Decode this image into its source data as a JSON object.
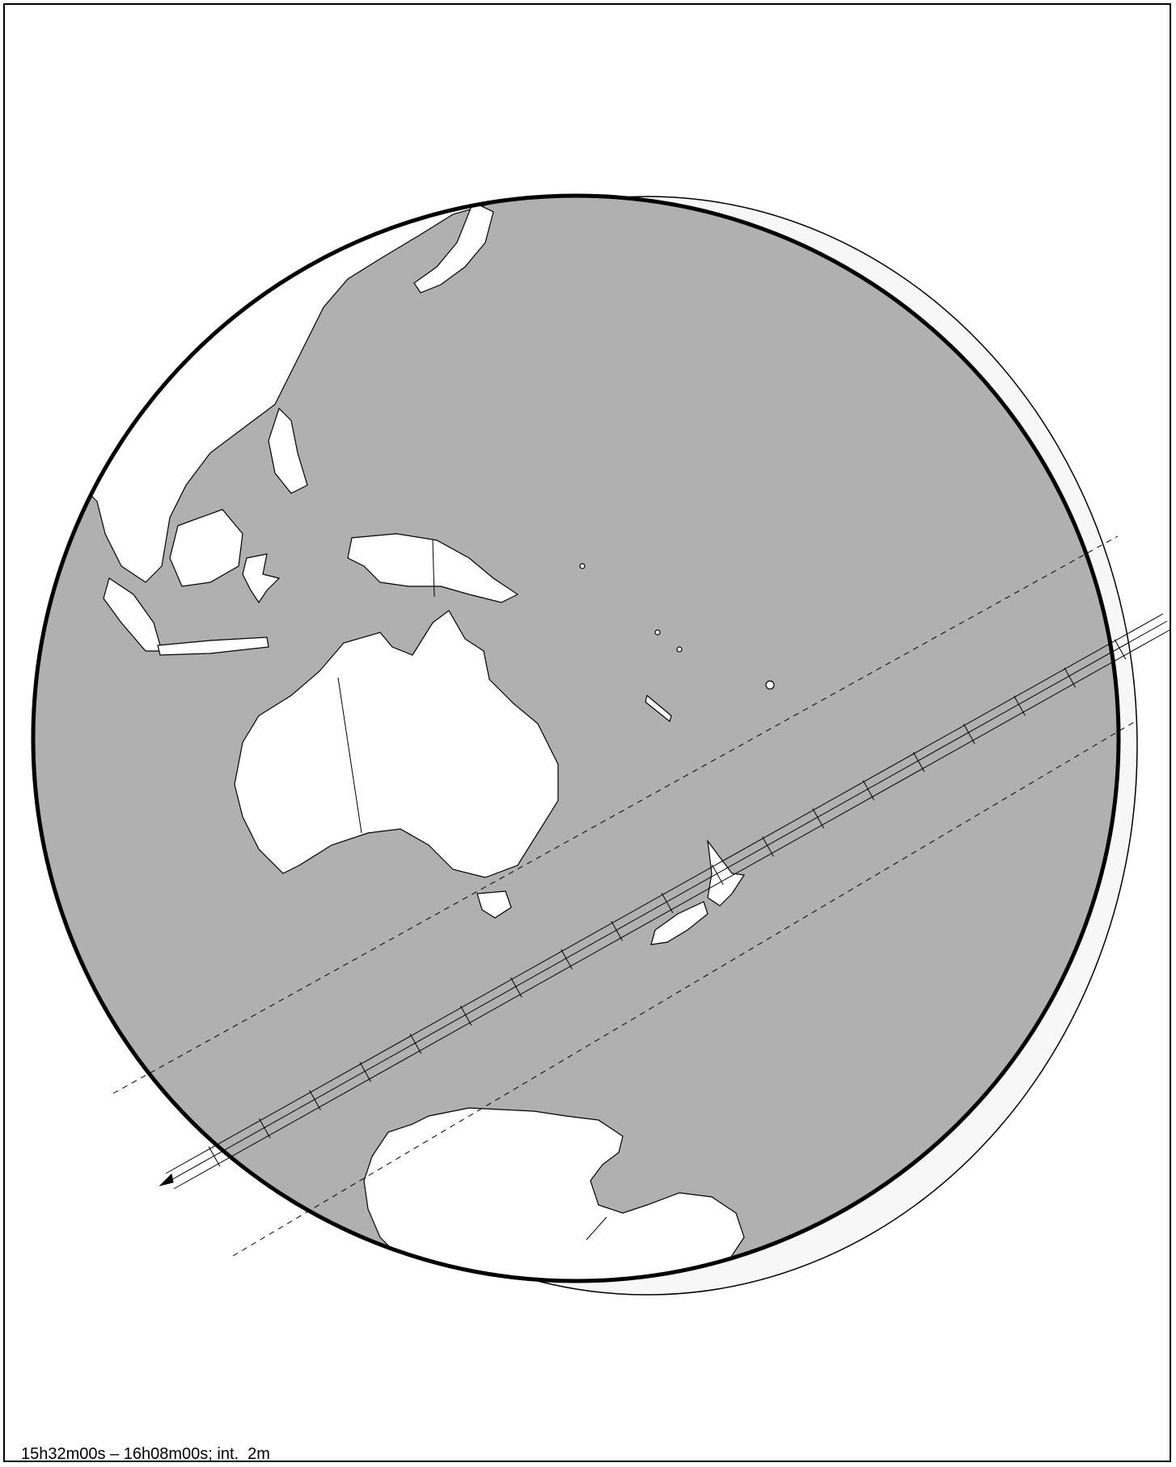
{
  "caption": "15h32m00s – 16h08m00s; int.  2m",
  "colors": {
    "globe_night": "#b0b0b0",
    "globe_day": "#f7f7f7",
    "land": "#ffffff",
    "ink": "#000000"
  },
  "map": {
    "projection": "orthographic",
    "features": [
      "Asia",
      "Australia",
      "New Guinea",
      "New Zealand",
      "Antarctica",
      "Pacific islands"
    ],
    "path": {
      "direction": "southwest",
      "time_start": "15h32m00s",
      "time_end": "16h08m00s",
      "tick_interval": "2m",
      "tick_count": 19
    }
  }
}
